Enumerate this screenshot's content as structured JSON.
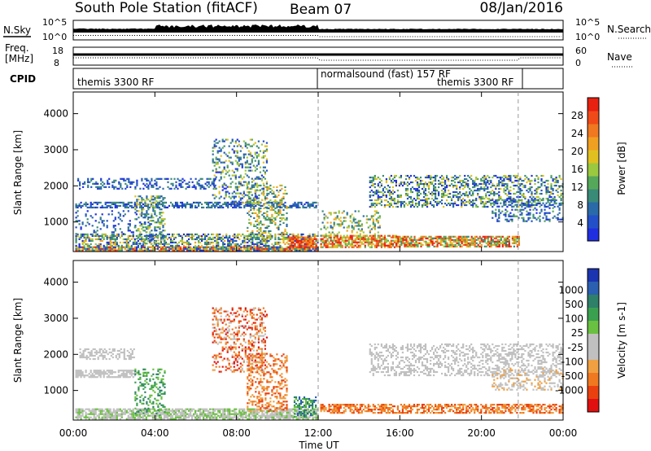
{
  "header": {
    "station": "South Pole Station (fitACF)",
    "beam": "Beam 07",
    "date": "08/Jan/2016"
  },
  "top_panel": {
    "left_label": "N.Sky",
    "right_label": "N.Search",
    "left_ticks": [
      "10^5",
      "10^0"
    ],
    "right_ticks": [
      "10^5",
      "10^0"
    ]
  },
  "freq_panel": {
    "left_label_1": "Freq.",
    "left_label_2": "[MHz]",
    "right_label": "Nave",
    "left_ticks": [
      "18",
      "8"
    ],
    "right_ticks": [
      "60",
      "0"
    ]
  },
  "cpid_panel": {
    "label": "CPID",
    "segments": [
      "themis 3300 RF",
      "normalsound (fast) 157 RF",
      "themis 3300 RF"
    ]
  },
  "chart_data": [
    {
      "type": "heatmap",
      "name": "power",
      "ylabel": "Slant Range [km]",
      "yticks": [
        1000,
        2000,
        3000,
        4000
      ],
      "ylim": [
        180,
        4600
      ],
      "xlim": [
        0,
        24
      ],
      "colorbar": {
        "label": "Power [dB]",
        "ticks": [
          4,
          8,
          12,
          16,
          20,
          24,
          28
        ],
        "range": [
          0,
          32
        ]
      }
    },
    {
      "type": "heatmap",
      "name": "velocity",
      "xlabel": "Time UT",
      "ylabel": "Slant Range [km]",
      "yticks": [
        1000,
        2000,
        3000,
        4000
      ],
      "xticks": [
        "00:00",
        "04:00",
        "08:00",
        "12:00",
        "16:00",
        "20:00",
        "00:00"
      ],
      "ylim": [
        180,
        4600
      ],
      "xlim": [
        0,
        24
      ],
      "colorbar": {
        "label": "Velocity [m s-1]",
        "ticks": [
          "1000",
          "500",
          "100",
          "25",
          "-25",
          "-100",
          "-500",
          "-1000"
        ]
      }
    }
  ],
  "palettes": {
    "power": [
      "#1f2fe0",
      "#2350c8",
      "#2a6aa8",
      "#3a8a78",
      "#55a85a",
      "#9ac83e",
      "#e0c020",
      "#f0a020",
      "#f07820",
      "#f04a18",
      "#e82010"
    ],
    "velocity": [
      "#1b34b0",
      "#2b5fb0",
      "#2e8068",
      "#3aa050",
      "#6ac040",
      "#c0c0c0",
      "#c0c0c0",
      "#f0a040",
      "#f07820",
      "#ea4010",
      "#e01010"
    ]
  },
  "scatter": [
    {
      "p": "power",
      "t0": 0.1,
      "t1": 12.0,
      "r0": 190,
      "r1": 320,
      "d": 0.9,
      "lo": 0,
      "hi": 10
    },
    {
      "p": "power",
      "t0": 0.1,
      "t1": 12.0,
      "r0": 320,
      "r1": 650,
      "d": 0.55,
      "lo": 0,
      "hi": 7
    },
    {
      "p": "power",
      "t0": 0.1,
      "t1": 3.8,
      "r0": 650,
      "r1": 1300,
      "d": 0.12,
      "lo": 0,
      "hi": 3
    },
    {
      "p": "power",
      "t0": 0.1,
      "t1": 11.9,
      "r0": 1380,
      "r1": 1530,
      "d": 0.55,
      "lo": 0,
      "hi": 3
    },
    {
      "p": "power",
      "t0": 0.2,
      "t1": 7.0,
      "r0": 1900,
      "r1": 2200,
      "d": 0.35,
      "lo": 0,
      "hi": 3
    },
    {
      "p": "power",
      "t0": 3.0,
      "t1": 4.5,
      "r0": 380,
      "r1": 1700,
      "d": 0.35,
      "lo": 1,
      "hi": 6
    },
    {
      "p": "power",
      "t0": 6.8,
      "t1": 9.5,
      "r0": 1500,
      "r1": 3300,
      "d": 0.28,
      "lo": 0,
      "hi": 6
    },
    {
      "p": "power",
      "t0": 8.5,
      "t1": 10.5,
      "r0": 500,
      "r1": 2000,
      "d": 0.3,
      "lo": 2,
      "hi": 7
    },
    {
      "p": "power",
      "t0": 10.5,
      "t1": 11.9,
      "r0": 280,
      "r1": 560,
      "d": 0.8,
      "lo": 7,
      "hi": 11
    },
    {
      "p": "power",
      "t0": 12.1,
      "t1": 15.8,
      "r0": 280,
      "r1": 600,
      "d": 0.75,
      "lo": 4,
      "hi": 11
    },
    {
      "p": "power",
      "t0": 12.1,
      "t1": 15.0,
      "r0": 600,
      "r1": 1300,
      "d": 0.25,
      "lo": 2,
      "hi": 7
    },
    {
      "p": "power",
      "t0": 15.8,
      "t1": 21.8,
      "r0": 300,
      "r1": 580,
      "d": 0.7,
      "lo": 3,
      "hi": 11
    },
    {
      "p": "power",
      "t0": 14.5,
      "t1": 24.0,
      "r0": 1400,
      "r1": 2300,
      "d": 0.4,
      "lo": 0,
      "hi": 6
    },
    {
      "p": "power",
      "t0": 20.5,
      "t1": 24.0,
      "r0": 1000,
      "r1": 1600,
      "d": 0.3,
      "lo": 0,
      "hi": 4
    },
    {
      "p": "velocity",
      "t0": 0.1,
      "t1": 12.0,
      "r0": 190,
      "r1": 500,
      "d": 0.75,
      "lo": 4,
      "hi": 6
    },
    {
      "p": "velocity",
      "t0": 0.1,
      "t1": 3.0,
      "r0": 1350,
      "r1": 1550,
      "d": 0.6,
      "lo": 5,
      "hi": 6
    },
    {
      "p": "velocity",
      "t0": 0.3,
      "t1": 3.0,
      "r0": 1850,
      "r1": 2150,
      "d": 0.45,
      "lo": 5,
      "hi": 6
    },
    {
      "p": "velocity",
      "t0": 3.0,
      "t1": 4.5,
      "r0": 300,
      "r1": 1600,
      "d": 0.3,
      "lo": 2,
      "hi": 4
    },
    {
      "p": "velocity",
      "t0": 6.8,
      "t1": 9.5,
      "r0": 1500,
      "r1": 3300,
      "d": 0.3,
      "lo": 6,
      "hi": 10
    },
    {
      "p": "velocity",
      "t0": 8.5,
      "t1": 10.5,
      "r0": 400,
      "r1": 2000,
      "d": 0.35,
      "lo": 7,
      "hi": 9
    },
    {
      "p": "velocity",
      "t0": 10.8,
      "t1": 11.9,
      "r0": 250,
      "r1": 800,
      "d": 0.5,
      "lo": 1,
      "hi": 4
    },
    {
      "p": "velocity",
      "t0": 12.1,
      "t1": 24.0,
      "r0": 360,
      "r1": 620,
      "d": 0.6,
      "lo": 7,
      "hi": 9
    },
    {
      "p": "velocity",
      "t0": 14.5,
      "t1": 24.0,
      "r0": 1400,
      "r1": 2300,
      "d": 0.35,
      "lo": 5,
      "hi": 6
    },
    {
      "p": "velocity",
      "t0": 20.5,
      "t1": 24.0,
      "r0": 1000,
      "r1": 1600,
      "d": 0.3,
      "lo": 5,
      "hi": 7
    }
  ]
}
